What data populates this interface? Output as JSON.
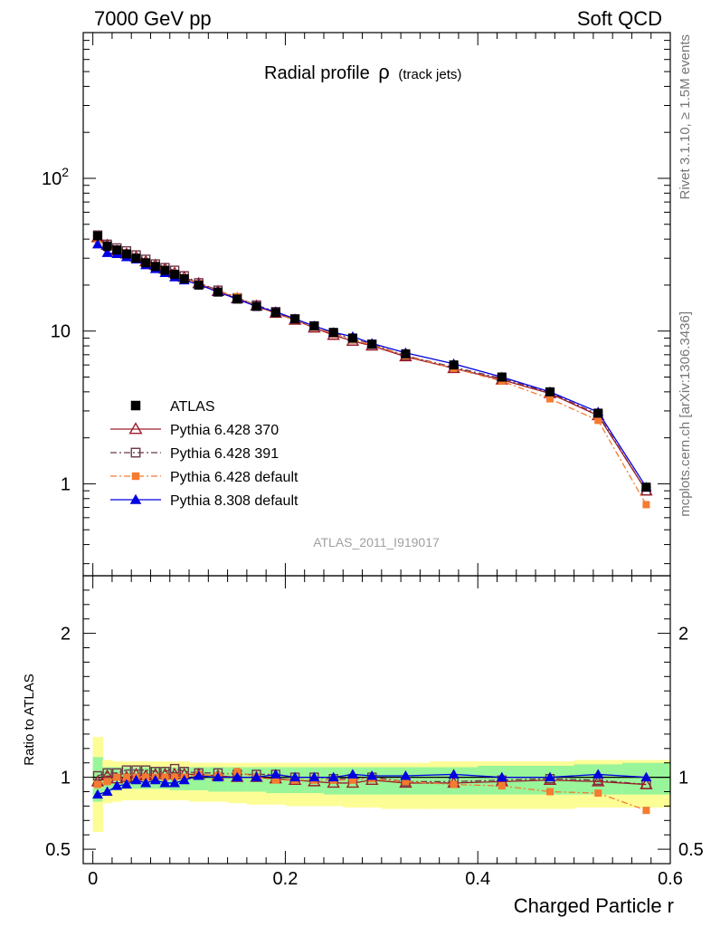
{
  "header": {
    "left": "7000 GeV pp",
    "right": "Soft QCD"
  },
  "title": {
    "main": "Radial profile",
    "symbol": "ρ",
    "sub": "(track jets)"
  },
  "side_labels": {
    "rivet": "Rivet 3.1.10, ≥ 1.5M events",
    "mcplots": "mcplots.cern.ch [arXiv:1306.3436]"
  },
  "watermark": "ATLAS_2011_I919017",
  "colors": {
    "atlas": "#000000",
    "p370": "#9b1c2a",
    "p391": "#6b3a4a",
    "p6def": "#f47b30",
    "p8def": "#0000e0",
    "band_outer": "#fdfd96",
    "band_inner": "#99f599"
  },
  "chart_data": [
    {
      "type": "scatter",
      "panel": "main",
      "log_y": true,
      "xlim": [
        -0.01,
        0.6
      ],
      "ylim": [
        0.25,
        900
      ],
      "y_ticks": [
        {
          "value": 100,
          "label": "10",
          "exp": "2"
        },
        {
          "value": 10,
          "label": "10",
          "exp": ""
        },
        {
          "value": 1,
          "label": "1",
          "exp": ""
        }
      ],
      "x": [
        0.005,
        0.015,
        0.025,
        0.035,
        0.045,
        0.055,
        0.065,
        0.075,
        0.085,
        0.095,
        0.11,
        0.13,
        0.15,
        0.17,
        0.19,
        0.21,
        0.23,
        0.25,
        0.27,
        0.29,
        0.325,
        0.375,
        0.425,
        0.475,
        0.525,
        0.575
      ],
      "legend_position": "lower-left",
      "series": [
        {
          "name": "ATLAS",
          "key": "atlas",
          "marker": "filled-square",
          "line": "none",
          "values": [
            42,
            36,
            34,
            32,
            30,
            28,
            26.5,
            25,
            23.5,
            22,
            20,
            18,
            16.2,
            14.5,
            13.2,
            12,
            10.8,
            9.8,
            9,
            8.2,
            7.1,
            6,
            5,
            4,
            2.9,
            0.95
          ]
        },
        {
          "name": "Pythia 6.428 370",
          "key": "p370",
          "marker": "open-triangle",
          "line": "solid",
          "values": [
            41,
            36.5,
            33.5,
            32,
            30.5,
            28.5,
            27,
            25.5,
            24,
            22.5,
            20.5,
            18.2,
            16.3,
            14.6,
            13.1,
            11.8,
            10.5,
            9.4,
            8.6,
            8,
            6.8,
            5.7,
            4.8,
            3.9,
            2.8,
            0.9
          ]
        },
        {
          "name": "Pythia 6.428 391",
          "key": "p391",
          "marker": "open-square",
          "line": "dashdot",
          "values": [
            42.5,
            37,
            35,
            33.5,
            31.5,
            29.5,
            27.5,
            26,
            25,
            23,
            20.7,
            18.5,
            16.5,
            14.8,
            13.4,
            12,
            10.8,
            9.7,
            8.9,
            8.2,
            6.9,
            5.8,
            4.9,
            3.95,
            2.85,
            0.9
          ]
        },
        {
          "name": "Pythia 6.428 default",
          "key": "p6def",
          "marker": "filled-square-small",
          "line": "dashdot",
          "values": [
            40,
            35,
            34,
            32,
            30,
            28,
            26.5,
            25,
            23.5,
            22,
            20.5,
            18.2,
            16.8,
            14.5,
            13,
            11.8,
            10.6,
            9.6,
            8.8,
            8.1,
            6.9,
            5.7,
            4.7,
            3.6,
            2.6,
            0.73
          ]
        },
        {
          "name": "Pythia 8.308 default",
          "key": "p8def",
          "marker": "filled-triangle",
          "line": "solid",
          "values": [
            37,
            32.5,
            32,
            30.5,
            29.5,
            27,
            25.5,
            24,
            22.5,
            21.5,
            20.2,
            18,
            16.2,
            14.5,
            13.4,
            12,
            10.8,
            9.8,
            9.2,
            8.3,
            7.2,
            6.1,
            5,
            4,
            2.95,
            0.95
          ]
        }
      ]
    },
    {
      "type": "scatter",
      "panel": "ratio",
      "ylabel": "Ratio to ATLAS",
      "xlabel": "Charged Particle r",
      "xlim": [
        -0.01,
        0.6
      ],
      "ylim": [
        0.4,
        2.4
      ],
      "x_ticks": [
        {
          "value": 0,
          "label": "0"
        },
        {
          "value": 0.2,
          "label": "0.2"
        },
        {
          "value": 0.4,
          "label": "0.4"
        },
        {
          "value": 0.6,
          "label": "0.6"
        }
      ],
      "y_ticks": [
        {
          "value": 2,
          "label": "2"
        },
        {
          "value": 1,
          "label": "1"
        },
        {
          "value": 0.5,
          "label": "0.5"
        }
      ],
      "x": [
        0.005,
        0.015,
        0.025,
        0.035,
        0.045,
        0.055,
        0.065,
        0.075,
        0.085,
        0.095,
        0.11,
        0.13,
        0.15,
        0.17,
        0.19,
        0.21,
        0.23,
        0.25,
        0.27,
        0.29,
        0.325,
        0.375,
        0.425,
        0.475,
        0.525,
        0.575
      ],
      "bins": [
        [
          0.0,
          0.01
        ],
        [
          0.01,
          0.02
        ],
        [
          0.02,
          0.03
        ],
        [
          0.03,
          0.04
        ],
        [
          0.04,
          0.05
        ],
        [
          0.05,
          0.06
        ],
        [
          0.06,
          0.07
        ],
        [
          0.07,
          0.08
        ],
        [
          0.08,
          0.09
        ],
        [
          0.09,
          0.1
        ],
        [
          0.1,
          0.12
        ],
        [
          0.12,
          0.14
        ],
        [
          0.14,
          0.16
        ],
        [
          0.16,
          0.18
        ],
        [
          0.18,
          0.2
        ],
        [
          0.2,
          0.22
        ],
        [
          0.22,
          0.24
        ],
        [
          0.24,
          0.26
        ],
        [
          0.26,
          0.28
        ],
        [
          0.28,
          0.3
        ],
        [
          0.3,
          0.35
        ],
        [
          0.35,
          0.4
        ],
        [
          0.4,
          0.45
        ],
        [
          0.45,
          0.5
        ],
        [
          0.5,
          0.55
        ],
        [
          0.55,
          0.6
        ]
      ],
      "band_outer": [
        [
          0.62,
          1.28
        ],
        [
          0.82,
          1.12
        ],
        [
          0.83,
          1.11
        ],
        [
          0.84,
          1.11
        ],
        [
          0.84,
          1.11
        ],
        [
          0.84,
          1.11
        ],
        [
          0.84,
          1.11
        ],
        [
          0.84,
          1.11
        ],
        [
          0.84,
          1.11
        ],
        [
          0.84,
          1.11
        ],
        [
          0.83,
          1.1
        ],
        [
          0.83,
          1.1
        ],
        [
          0.82,
          1.1
        ],
        [
          0.81,
          1.1
        ],
        [
          0.81,
          1.1
        ],
        [
          0.8,
          1.1
        ],
        [
          0.8,
          1.1
        ],
        [
          0.8,
          1.1
        ],
        [
          0.79,
          1.1
        ],
        [
          0.79,
          1.1
        ],
        [
          0.78,
          1.1
        ],
        [
          0.78,
          1.11
        ],
        [
          0.78,
          1.11
        ],
        [
          0.78,
          1.11
        ],
        [
          0.79,
          1.12
        ],
        [
          0.79,
          1.12
        ]
      ],
      "band_inner": [
        [
          0.83,
          1.14
        ],
        [
          0.9,
          1.07
        ],
        [
          0.91,
          1.07
        ],
        [
          0.92,
          1.07
        ],
        [
          0.92,
          1.07
        ],
        [
          0.92,
          1.07
        ],
        [
          0.92,
          1.07
        ],
        [
          0.92,
          1.07
        ],
        [
          0.91,
          1.07
        ],
        [
          0.91,
          1.07
        ],
        [
          0.91,
          1.07
        ],
        [
          0.9,
          1.07
        ],
        [
          0.9,
          1.07
        ],
        [
          0.9,
          1.07
        ],
        [
          0.89,
          1.07
        ],
        [
          0.89,
          1.07
        ],
        [
          0.89,
          1.07
        ],
        [
          0.88,
          1.07
        ],
        [
          0.88,
          1.07
        ],
        [
          0.88,
          1.07
        ],
        [
          0.88,
          1.07
        ],
        [
          0.88,
          1.07
        ],
        [
          0.88,
          1.08
        ],
        [
          0.88,
          1.08
        ],
        [
          0.88,
          1.09
        ],
        [
          0.88,
          1.1
        ]
      ],
      "series": [
        {
          "name": "Pythia 6.428 370",
          "key": "p370",
          "marker": "open-triangle",
          "line": "solid",
          "values": [
            0.97,
            1.01,
            0.99,
            1.0,
            1.02,
            1.01,
            1.02,
            1.02,
            1.02,
            1.02,
            1.02,
            1.01,
            1.0,
            1.0,
            0.99,
            0.98,
            0.97,
            0.96,
            0.96,
            0.98,
            0.96,
            0.96,
            0.97,
            0.98,
            0.97,
            0.95
          ]
        },
        {
          "name": "Pythia 6.428 391",
          "key": "p391",
          "marker": "open-square",
          "line": "dashdot",
          "values": [
            1.01,
            1.03,
            1.03,
            1.05,
            1.05,
            1.05,
            1.04,
            1.04,
            1.06,
            1.04,
            1.03,
            1.03,
            1.02,
            1.02,
            1.02,
            1.0,
            1.0,
            0.99,
            0.99,
            1.0,
            0.97,
            0.97,
            0.98,
            0.99,
            0.98,
            0.95
          ]
        },
        {
          "name": "Pythia 6.428 default",
          "key": "p6def",
          "marker": "filled-square-small",
          "line": "dashdot",
          "values": [
            0.95,
            0.97,
            1.0,
            1.0,
            1.0,
            1.0,
            1.0,
            1.0,
            1.0,
            1.0,
            1.02,
            1.01,
            1.04,
            1.0,
            0.98,
            0.98,
            0.98,
            0.98,
            0.98,
            0.99,
            0.97,
            0.95,
            0.94,
            0.9,
            0.89,
            0.77
          ]
        },
        {
          "name": "Pythia 8.308 default",
          "key": "p8def",
          "marker": "filled-triangle",
          "line": "solid",
          "values": [
            0.88,
            0.9,
            0.94,
            0.95,
            0.98,
            0.96,
            0.98,
            0.96,
            0.96,
            0.98,
            1.01,
            1.0,
            1.0,
            1.0,
            1.02,
            1.0,
            1.0,
            1.0,
            1.02,
            1.01,
            1.01,
            1.02,
            1.0,
            1.0,
            1.02,
            1.0
          ]
        }
      ]
    }
  ]
}
